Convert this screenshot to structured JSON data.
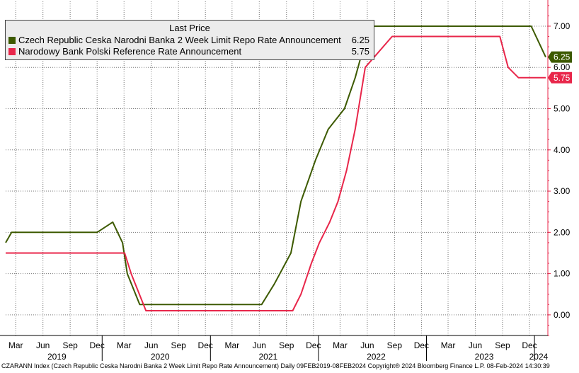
{
  "chart_data": {
    "type": "line",
    "legend": {
      "title": "Last Price",
      "placement": "top-left"
    },
    "series": [
      {
        "name": "Czech Republic Ceska Narodni Banka 2 Week Limit Repo Rate Announcement",
        "last_label": "6.25",
        "color": "#3d5a00",
        "points": [
          [
            "2019-02-09",
            1.75
          ],
          [
            "2019-03-01",
            2.0
          ],
          [
            "2019-05-01",
            2.0
          ],
          [
            "2019-12-15",
            2.0
          ],
          [
            "2020-02-06",
            2.25
          ],
          [
            "2020-03-10",
            1.75
          ],
          [
            "2020-03-26",
            1.0
          ],
          [
            "2020-05-07",
            0.25
          ],
          [
            "2021-06-23",
            0.25
          ],
          [
            "2021-08-05",
            0.75
          ],
          [
            "2021-09-30",
            1.5
          ],
          [
            "2021-11-03",
            2.75
          ],
          [
            "2021-12-22",
            3.75
          ],
          [
            "2022-02-03",
            4.5
          ],
          [
            "2022-03-30",
            5.0
          ],
          [
            "2022-05-05",
            5.75
          ],
          [
            "2022-06-22",
            7.0
          ],
          [
            "2023-12-21",
            7.0
          ],
          [
            "2024-02-08",
            6.25
          ]
        ]
      },
      {
        "name": "Narodowy Bank Polski Reference Rate Announcement",
        "last_label": "5.75",
        "color": "#e8264a",
        "points": [
          [
            "2019-02-09",
            1.5
          ],
          [
            "2020-03-17",
            1.5
          ],
          [
            "2020-04-08",
            1.0
          ],
          [
            "2020-05-28",
            0.1
          ],
          [
            "2021-10-06",
            0.1
          ],
          [
            "2021-11-03",
            0.5
          ],
          [
            "2021-12-08",
            1.25
          ],
          [
            "2022-01-04",
            1.75
          ],
          [
            "2022-02-08",
            2.25
          ],
          [
            "2022-03-08",
            2.75
          ],
          [
            "2022-04-06",
            3.5
          ],
          [
            "2022-05-05",
            4.5
          ],
          [
            "2022-06-08",
            6.0
          ],
          [
            "2022-09-07",
            6.75
          ],
          [
            "2023-09-06",
            6.75
          ],
          [
            "2023-10-04",
            6.0
          ],
          [
            "2023-11-08",
            5.75
          ],
          [
            "2024-02-08",
            5.75
          ]
        ]
      }
    ],
    "xlim": [
      "2019-02-09",
      "2024-02-08"
    ],
    "ylim": [
      -0.5,
      7.6
    ],
    "y_ticks": [
      "0.00",
      "1.00",
      "2.00",
      "3.00",
      "4.00",
      "5.00",
      "6.00",
      "7.00"
    ],
    "x_ticks": [
      {
        "label": "Mar",
        "date": "2019-03-15"
      },
      {
        "label": "Jun",
        "date": "2019-06-15"
      },
      {
        "label": "Sep",
        "date": "2019-09-15"
      },
      {
        "label": "Dec",
        "date": "2019-12-15"
      },
      {
        "label": "Mar",
        "date": "2020-03-15"
      },
      {
        "label": "Jun",
        "date": "2020-06-15"
      },
      {
        "label": "Sep",
        "date": "2020-09-15"
      },
      {
        "label": "Dec",
        "date": "2020-12-15"
      },
      {
        "label": "Mar",
        "date": "2021-03-15"
      },
      {
        "label": "Jun",
        "date": "2021-06-15"
      },
      {
        "label": "Sep",
        "date": "2021-09-15"
      },
      {
        "label": "Dec",
        "date": "2021-12-15"
      },
      {
        "label": "Mar",
        "date": "2022-03-15"
      },
      {
        "label": "Jun",
        "date": "2022-06-15"
      },
      {
        "label": "Sep",
        "date": "2022-09-15"
      },
      {
        "label": "Dec",
        "date": "2022-12-15"
      },
      {
        "label": "Mar",
        "date": "2023-03-15"
      },
      {
        "label": "Jun",
        "date": "2023-06-15"
      },
      {
        "label": "Sep",
        "date": "2023-09-15"
      },
      {
        "label": "Dec",
        "date": "2023-12-15"
      }
    ],
    "year_labels": [
      {
        "label": "2019",
        "date": "2019-08-01"
      },
      {
        "label": "2020",
        "date": "2020-07-15"
      },
      {
        "label": "2021",
        "date": "2021-07-15"
      },
      {
        "label": "2022",
        "date": "2022-07-15"
      },
      {
        "label": "2023",
        "date": "2023-07-15"
      },
      {
        "label": "2024",
        "date": "2024-01-15"
      }
    ],
    "year_boundaries": [
      "2020-01-01",
      "2021-01-01",
      "2022-01-01",
      "2023-01-01",
      "2024-01-01"
    ],
    "grid": true,
    "axis_color": "#e8264a"
  },
  "footer": "CZARANN Index (Czech Republic Ceska Narodni Banka 2 Week Limit Repo Rate Announcement)  Daily 09FEB2019-08FEB2024 Copyright® 2024 Bloomberg Finance L.P.  08-Feb-2024 14:30:39"
}
